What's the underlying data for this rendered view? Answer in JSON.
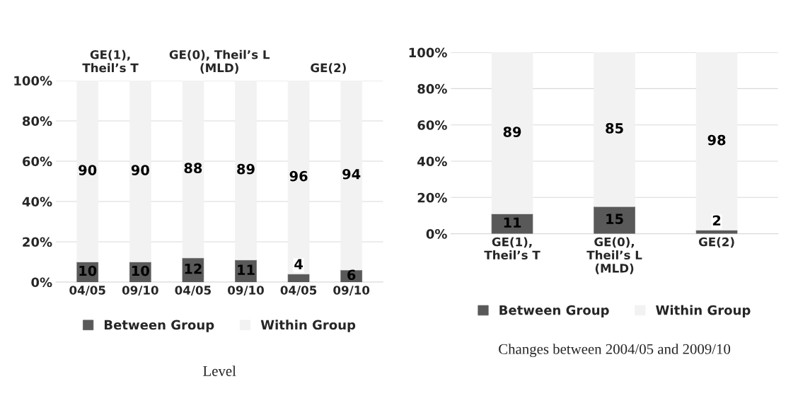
{
  "chart_data": [
    {
      "type": "bar",
      "stacked": true,
      "categories": [
        "04/05",
        "09/10",
        "04/05",
        "09/10",
        "04/05",
        "09/10"
      ],
      "series": [
        {
          "name": "Between Group",
          "color": "#595959",
          "values": [
            10,
            10,
            12,
            11,
            4,
            6
          ]
        },
        {
          "name": "Within Group",
          "color": "#f2f2f2",
          "values": [
            90,
            90,
            88,
            89,
            96,
            94
          ]
        }
      ],
      "ylim": [
        0,
        100
      ],
      "yticks": [
        {
          "value": 0,
          "label": "0%"
        },
        {
          "value": 20,
          "label": "20%"
        },
        {
          "value": 40,
          "label": "40%"
        },
        {
          "value": 60,
          "label": "60%"
        },
        {
          "value": 80,
          "label": "80%"
        },
        {
          "value": 100,
          "label": "100%"
        }
      ],
      "grid": "y",
      "legend": "bottom",
      "data_labels": true,
      "xlabel": "Level",
      "annotations": [
        "GE(1),\nTheil’s T",
        "GE(0), Theil’s L\n(MLD)",
        "GE(2)"
      ]
    },
    {
      "type": "bar",
      "stacked": true,
      "categories": [
        "GE(1),\nTheil’s T",
        "GE(0),\nTheil’s L\n(MLD)",
        "GE(2)"
      ],
      "series": [
        {
          "name": "Between Group",
          "color": "#595959",
          "values": [
            11,
            15,
            2
          ]
        },
        {
          "name": "Within Group",
          "color": "#f2f2f2",
          "values": [
            89,
            85,
            98
          ]
        }
      ],
      "ylim": [
        0,
        100
      ],
      "yticks": [
        {
          "value": 0,
          "label": "0%"
        },
        {
          "value": 20,
          "label": "20%"
        },
        {
          "value": 40,
          "label": "40%"
        },
        {
          "value": 60,
          "label": "60%"
        },
        {
          "value": 80,
          "label": "80%"
        },
        {
          "value": 100,
          "label": "100%"
        }
      ],
      "grid": "y",
      "legend": "bottom",
      "data_labels": true,
      "xlabel": "Changes between 2004/05 and 2009/10"
    }
  ]
}
